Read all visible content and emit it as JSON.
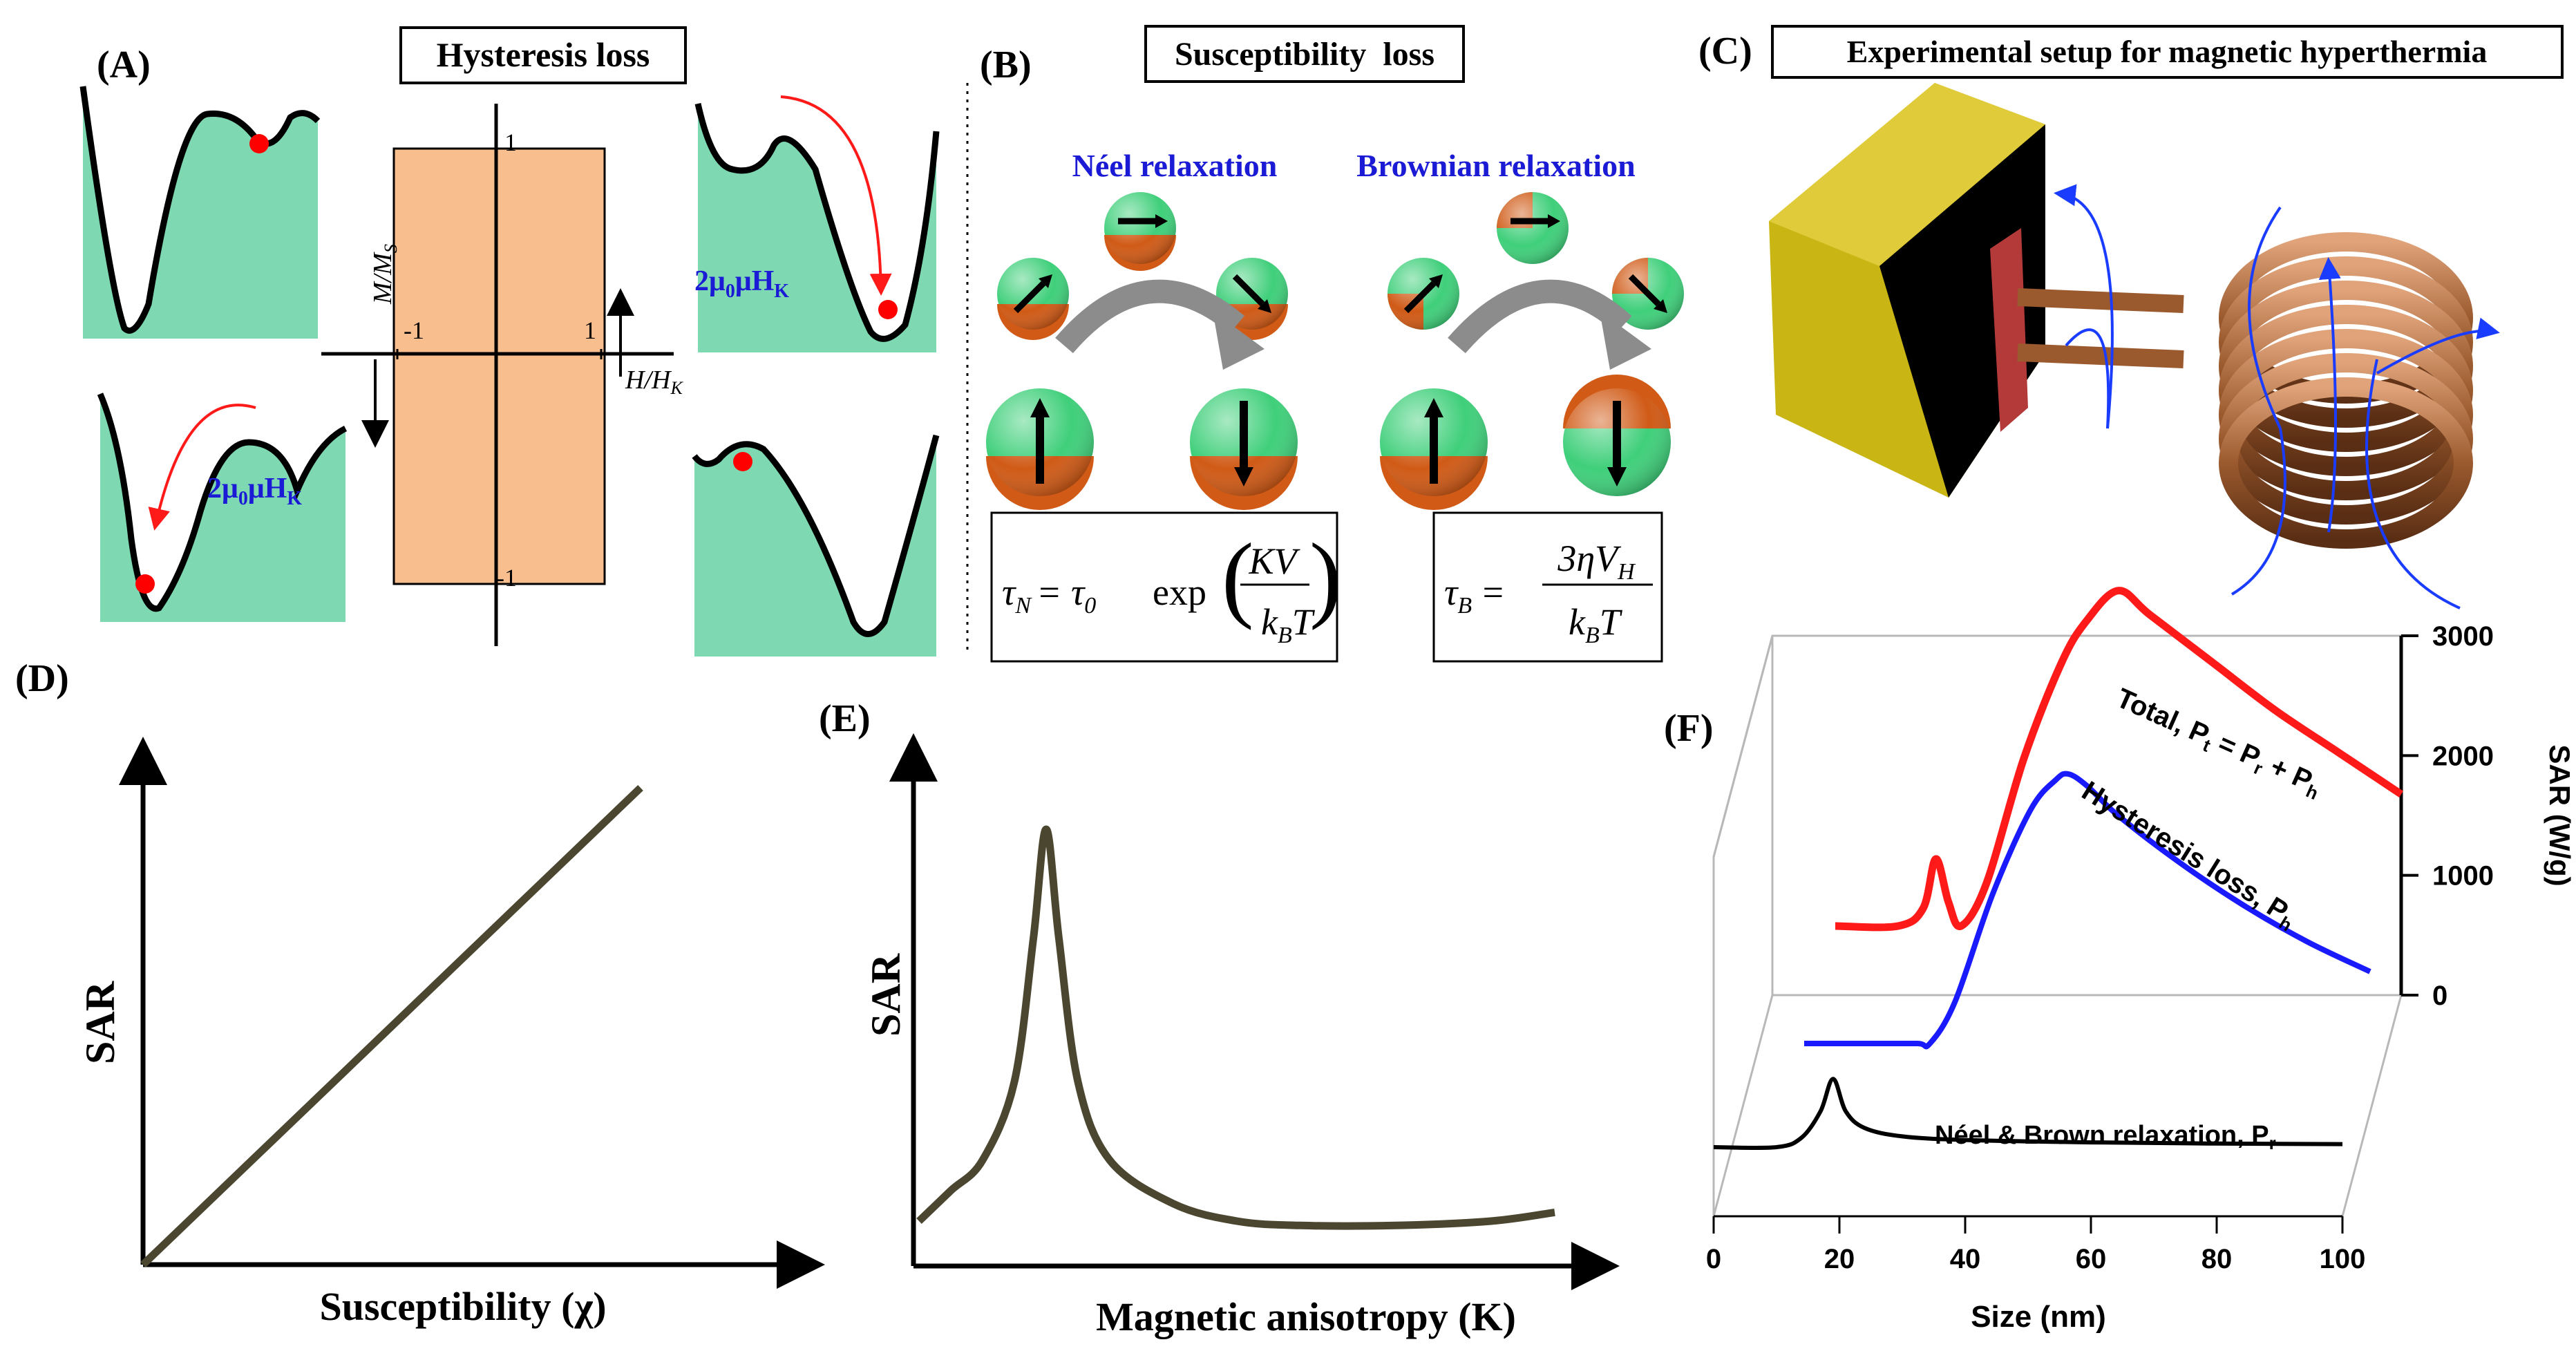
{
  "colors": {
    "teal": "#7ed9b3",
    "salmon": "#f9be8e",
    "blue_text": "#1b1bd6",
    "red": "#ff0000",
    "red_curve": "#ff1a1a",
    "blue_curve": "#1a1aff",
    "olive_curve": "#4a4630",
    "gold": "#c9b514",
    "copper": "#9b5a2e",
    "sphere_green": "#3fcf7a",
    "sphere_orange": "#d05a16"
  },
  "panel_a": {
    "letter": "(A)",
    "title": "Hysteresis loss",
    "y_axis": "M/M",
    "y_axis_sub": "S",
    "x_axis": "H/H",
    "x_axis_sub": "K",
    "tick_pos": "1",
    "tick_neg": "-1",
    "tick_x_pos": "1",
    "tick_x_neg": "-1",
    "energy_label": "2μ",
    "energy_label_sub": "0",
    "energy_label_mid": "μH",
    "energy_label_sub2": "K"
  },
  "panel_b": {
    "letter": "(B)",
    "title": "Susceptibility  loss",
    "neel": "Néel relaxation",
    "brown": "Brownian relaxation",
    "neel_tau": "τ",
    "neel_tau_sub": "N",
    "neel_eq_mid": "= τ",
    "neel_eq_mid_sub": "0",
    "neel_exp": "exp",
    "neel_num": "KV",
    "neel_den": "k",
    "neel_den_sub": "B",
    "neel_den_end": "T",
    "brown_tau": "τ",
    "brown_tau_sub": "B",
    "brown_eq": "=",
    "brown_num": "3ηV",
    "brown_num_sub": "H",
    "brown_den": "k",
    "brown_den_sub": "B",
    "brown_den_end": "T"
  },
  "panel_c": {
    "letter": "(C)",
    "title": "Experimental setup for magnetic hyperthermia"
  },
  "panel_d": {
    "letter": "(D)",
    "ylabel": "SAR",
    "xlabel": "Susceptibility (χ)"
  },
  "panel_e": {
    "letter": "(E)",
    "ylabel": "SAR",
    "xlabel": "Magnetic anisotropy (K)"
  },
  "panel_f": {
    "letter": "(F)",
    "ylabel": "SAR (W/g)",
    "xlabel": "Size (nm)",
    "total_label": "Total, P",
    "total_label_sub": "t",
    "total_label_mid": " = P",
    "total_label_sub2": "r",
    "total_label_mid2": " + P",
    "total_label_sub3": "h",
    "hyst_label": "Hysteresis loss, P",
    "hyst_label_sub": "h",
    "relax_label": "Néel & Brown relaxation, P",
    "relax_label_sub": "r"
  },
  "chart_data": [
    {
      "type": "line",
      "panel": "D",
      "xlabel": "Susceptibility (χ)",
      "ylabel": "SAR",
      "series": [
        {
          "x": [
            0,
            1
          ],
          "values": [
            0,
            1
          ]
        }
      ]
    },
    {
      "type": "line",
      "panel": "E",
      "xlabel": "Magnetic anisotropy (K)",
      "ylabel": "SAR",
      "series": [
        {
          "x": [
            0,
            0.05,
            0.1,
            0.15,
            0.18,
            0.2,
            0.22,
            0.25,
            0.3,
            0.4,
            0.5,
            0.6,
            0.75,
            0.9,
            1.0
          ],
          "values": [
            0.1,
            0.17,
            0.24,
            0.42,
            0.75,
            1.0,
            0.75,
            0.42,
            0.24,
            0.14,
            0.1,
            0.09,
            0.09,
            0.1,
            0.12
          ]
        }
      ]
    },
    {
      "type": "line",
      "panel": "F",
      "xlabel": "Size (nm)",
      "ylabel": "SAR (W/g)",
      "x_ticks": [
        0,
        20,
        40,
        60,
        80,
        100
      ],
      "y_ticks": [
        0,
        1000,
        2000,
        3000
      ],
      "xlim": [
        0,
        100
      ],
      "ylim": [
        0,
        3000
      ],
      "series": [
        {
          "name": "Total, Pt = Pr + Ph",
          "x": [
            10,
            20,
            24,
            26,
            28,
            30,
            34,
            40,
            46,
            50,
            55,
            60,
            70,
            80,
            90,
            100
          ],
          "values": [
            0,
            0,
            150,
            560,
            200,
            0,
            350,
            1400,
            2200,
            2550,
            2800,
            2600,
            2200,
            1800,
            1450,
            1100
          ]
        },
        {
          "name": "Hysteresis loss, Ph",
          "x": [
            10,
            20,
            28,
            30,
            34,
            40,
            46,
            50,
            52,
            55,
            60,
            70,
            80,
            90,
            100
          ],
          "values": [
            0,
            0,
            0,
            0,
            350,
            1250,
            1950,
            2200,
            2250,
            2150,
            1900,
            1500,
            1150,
            850,
            600
          ]
        },
        {
          "name": "Néel & Brown relaxation, Pr",
          "x": [
            0,
            10,
            14,
            17,
            19,
            21,
            24,
            30,
            40,
            60,
            80,
            100
          ],
          "values": [
            0,
            0,
            80,
            300,
            570,
            300,
            160,
            90,
            60,
            40,
            30,
            25
          ]
        }
      ]
    }
  ]
}
